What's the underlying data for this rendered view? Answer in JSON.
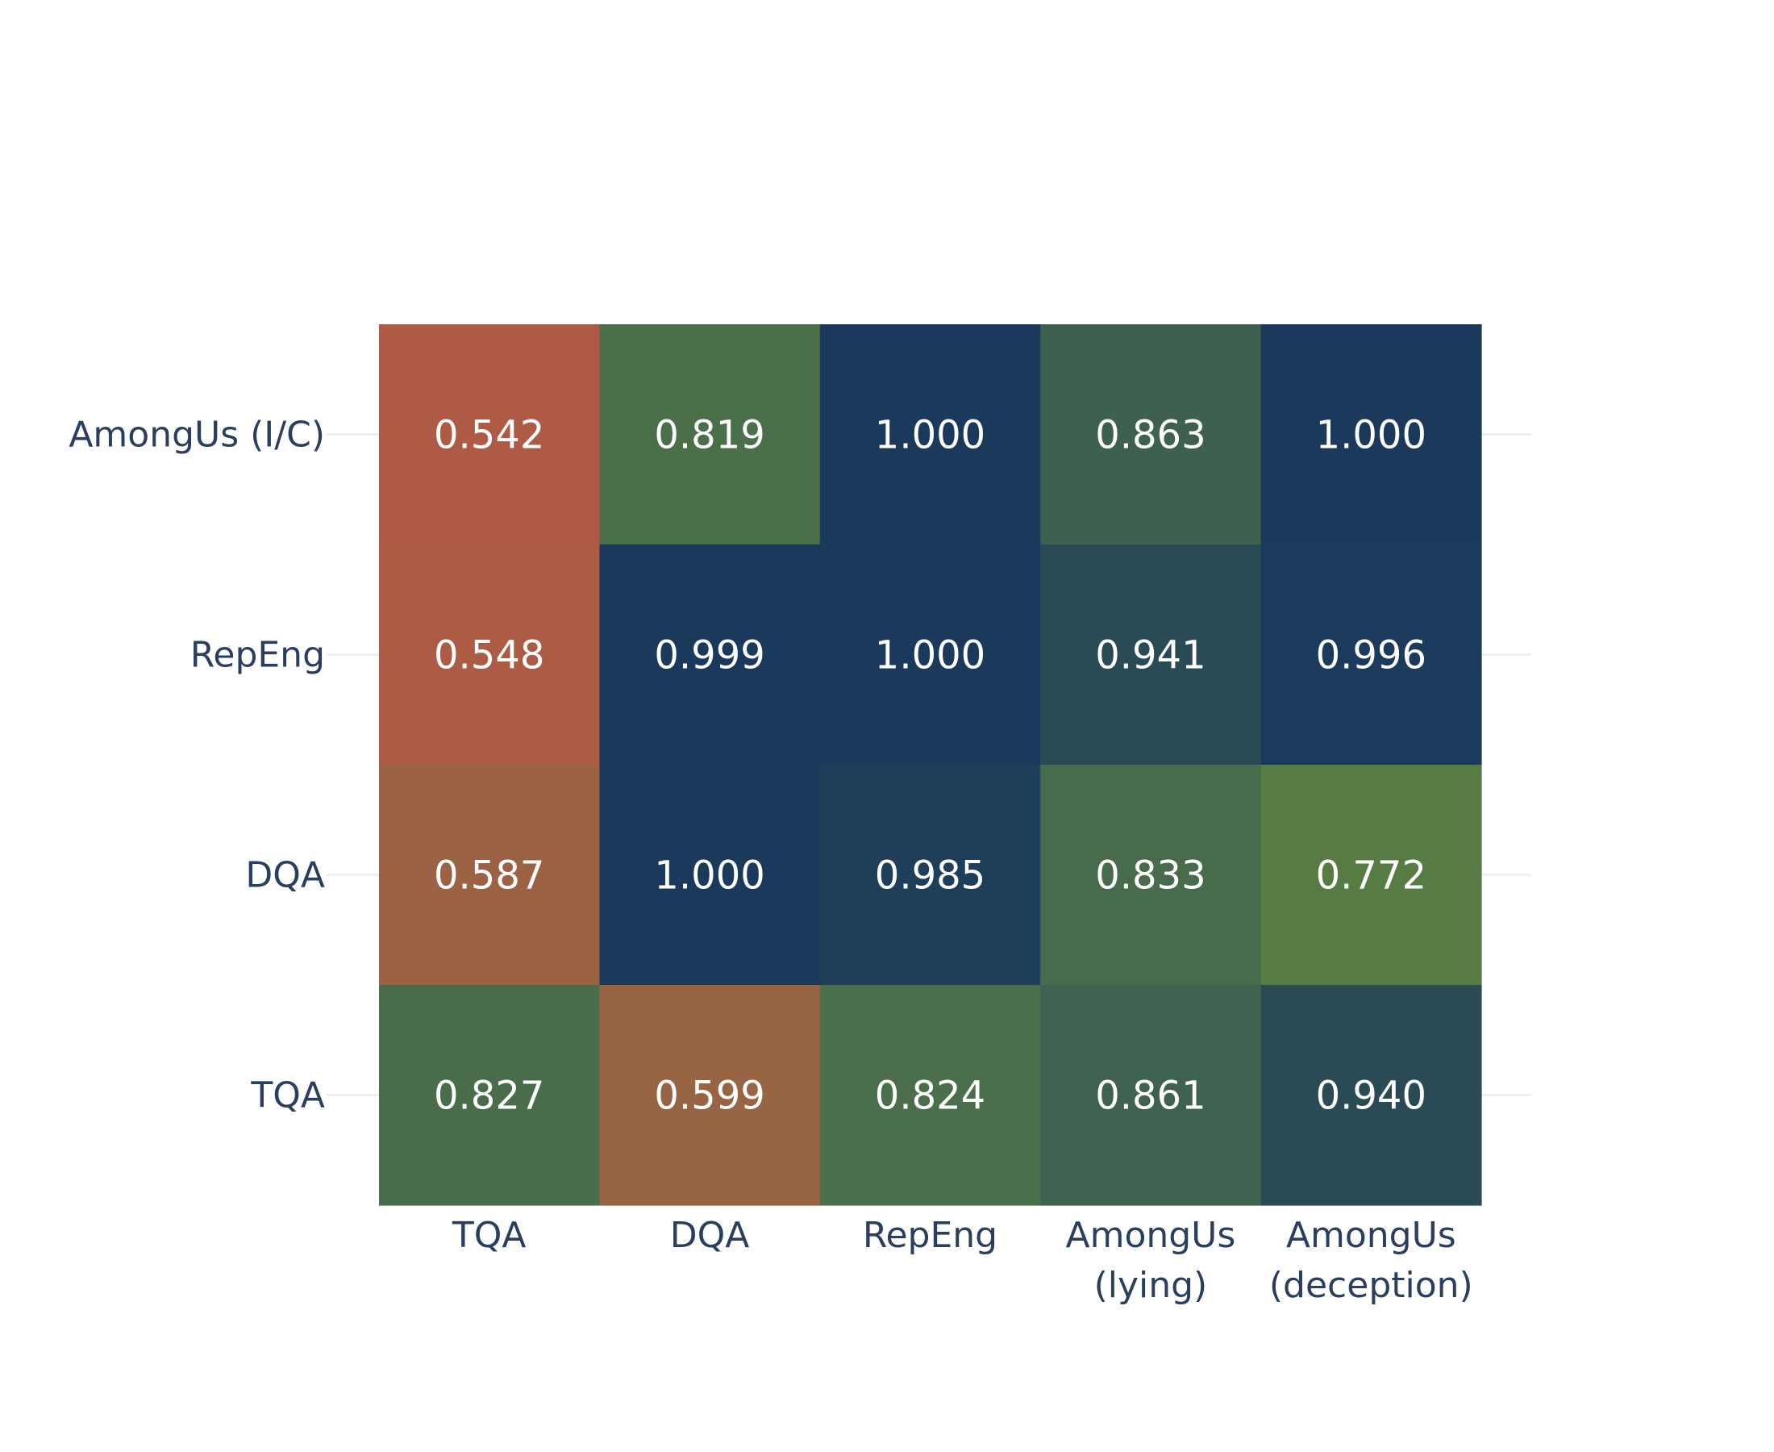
{
  "chart_data": {
    "type": "heatmap",
    "x_categories": [
      "TQA",
      "DQA",
      "RepEng",
      "AmongUs\n(lying)",
      "AmongUs\n(deception)"
    ],
    "y_categories": [
      "AmongUs (I/C)",
      "RepEng",
      "DQA",
      "TQA"
    ],
    "values": [
      [
        0.542,
        0.819,
        1.0,
        0.863,
        1.0
      ],
      [
        0.548,
        0.999,
        1.0,
        0.941,
        0.996
      ],
      [
        0.587,
        1.0,
        0.985,
        0.833,
        0.772
      ],
      [
        0.827,
        0.599,
        0.824,
        0.861,
        0.94
      ]
    ],
    "value_format": "0.000",
    "colorscale": [
      [
        0.0,
        "#b05a44"
      ],
      [
        0.5,
        "#4b7049"
      ],
      [
        0.7,
        "#567d44"
      ],
      [
        0.8,
        "#2a4b56"
      ],
      [
        1.0,
        "#1b395b"
      ]
    ],
    "colorscale_points": [
      0.54,
      0.59,
      0.77,
      0.82,
      0.86,
      0.94,
      1.0
    ],
    "colorscale_colors": [
      "#b05a44",
      "#9a6344",
      "#567d44",
      "#4b7049",
      "#3e6150",
      "#2a4b56",
      "#1b395b"
    ],
    "text_color": "#ffffff",
    "tick_color": "#2a3f5f",
    "grid_color": "#ebf0f8",
    "title": "",
    "xlabel": "",
    "ylabel": ""
  }
}
